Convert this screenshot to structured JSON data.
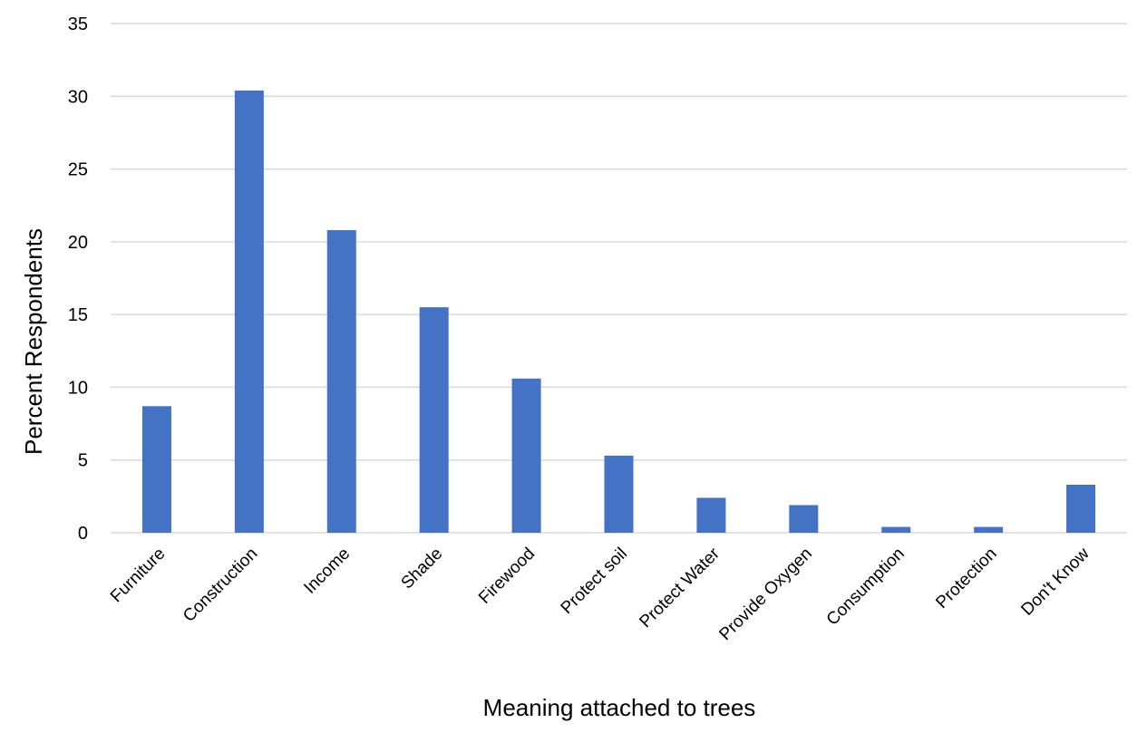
{
  "chart_data": {
    "type": "bar",
    "title": "",
    "xlabel": "Meaning attached to trees",
    "ylabel": "Percent Respondents",
    "categories": [
      "Furniture",
      "Construction",
      "Income",
      "Shade",
      "Firewood",
      "Protect soil",
      "Protect Water",
      "Provide Oxygen",
      "Consumption",
      "Protection",
      "Don't Know"
    ],
    "values": [
      8.7,
      30.4,
      20.8,
      15.5,
      10.6,
      5.3,
      2.4,
      1.9,
      0.4,
      0.4,
      3.3
    ],
    "ylim": [
      0,
      35
    ],
    "yticks": [
      "0",
      "5",
      "10",
      "15",
      "20",
      "25",
      "30",
      "35"
    ],
    "grid": true,
    "legend": "none",
    "bar_color": "#4472C4",
    "grid_color": "#D9D9D9"
  }
}
